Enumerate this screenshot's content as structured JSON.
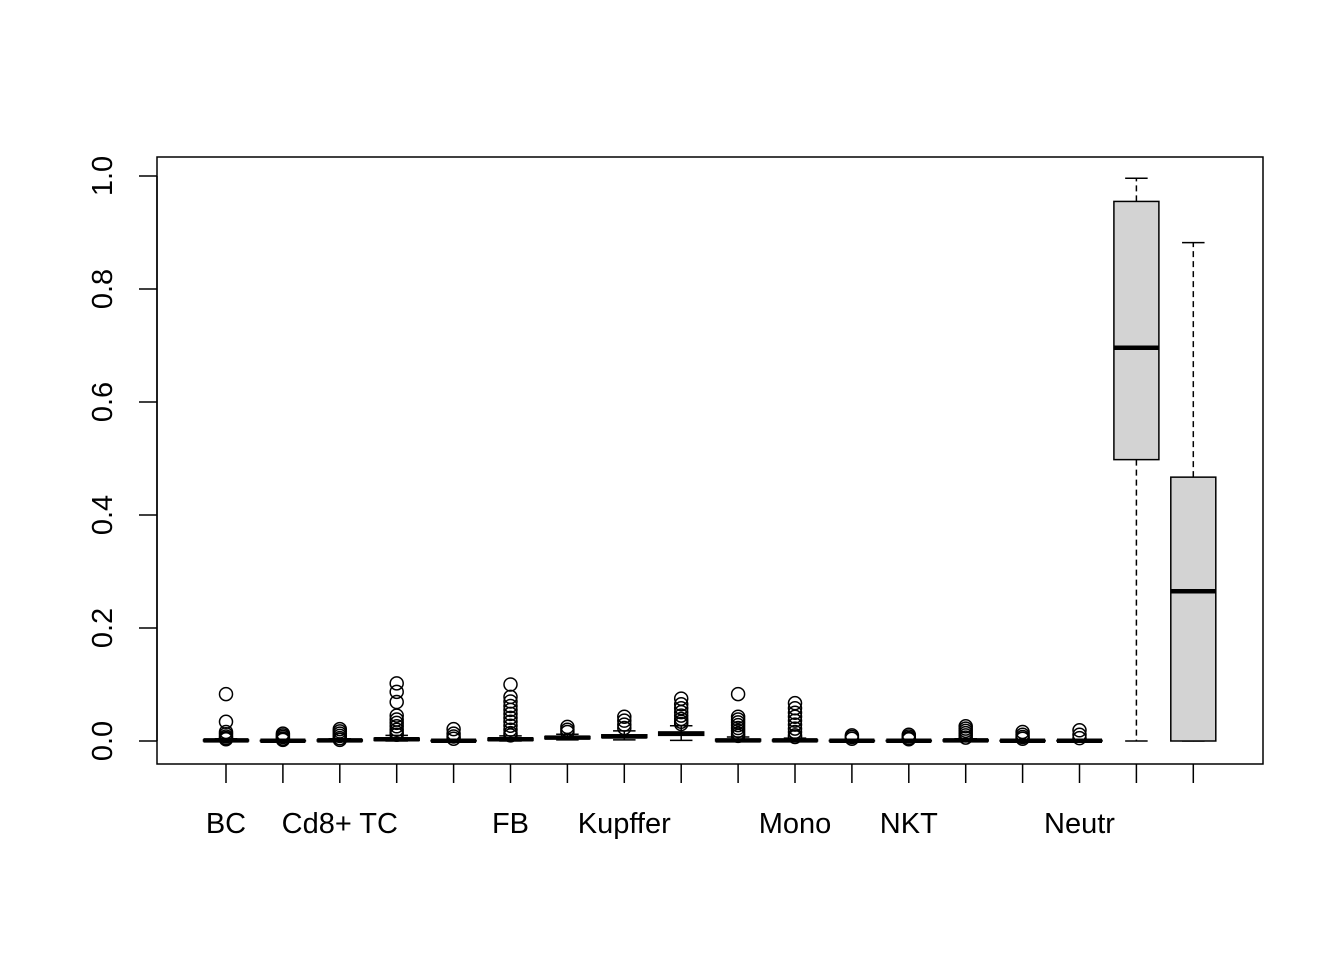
{
  "chart_data": {
    "type": "boxplot",
    "title": "",
    "xlabel": "",
    "ylabel": "",
    "ylim": [
      -0.04,
      1.035
    ],
    "y_ticks": [
      0.0,
      0.2,
      0.4,
      0.6,
      0.8,
      1.0
    ],
    "y_tick_labels": [
      "0.0",
      "0.2",
      "0.4",
      "0.6",
      "0.8",
      "1.0"
    ],
    "x_tick_count": 18,
    "x_labels_shown": [
      {
        "index": 1,
        "label": "BC"
      },
      {
        "index": 3,
        "label": "Cd8+ TC"
      },
      {
        "index": 6,
        "label": "FB"
      },
      {
        "index": 8,
        "label": "Kupffer"
      },
      {
        "index": 11,
        "label": "Mono"
      },
      {
        "index": 13,
        "label": "NKT"
      },
      {
        "index": 16,
        "label": "Neutr"
      }
    ],
    "box_fill": "#d3d3d3",
    "boxes": [
      {
        "q1": 0.0,
        "median": 0.001,
        "q3": 0.002,
        "whisker_low": 0.0,
        "whisker_high": 0.004,
        "outliers": [
          0.083,
          0.034,
          0.016,
          0.012,
          0.008,
          0.005,
          0.003
        ]
      },
      {
        "q1": 0.0,
        "median": 0.0005,
        "q3": 0.001,
        "whisker_low": 0.0,
        "whisker_high": 0.002,
        "outliers": [
          0.013,
          0.01,
          0.007,
          0.004,
          0.002
        ]
      },
      {
        "q1": 0.0,
        "median": 0.001,
        "q3": 0.002,
        "whisker_low": 0.0,
        "whisker_high": 0.004,
        "outliers": [
          0.021,
          0.017,
          0.013,
          0.009,
          0.005,
          0.002
        ]
      },
      {
        "q1": 0.001,
        "median": 0.003,
        "q3": 0.005,
        "whisker_low": 0.0,
        "whisker_high": 0.01,
        "outliers": [
          0.102,
          0.087,
          0.069,
          0.045,
          0.038,
          0.032,
          0.026,
          0.02,
          0.015,
          0.011
        ]
      },
      {
        "q1": 0.0,
        "median": 0.0005,
        "q3": 0.001,
        "whisker_low": 0.0,
        "whisker_high": 0.003,
        "outliers": [
          0.021,
          0.013,
          0.008,
          0.004
        ]
      },
      {
        "q1": 0.001,
        "median": 0.003,
        "q3": 0.005,
        "whisker_low": 0.0,
        "whisker_high": 0.009,
        "outliers": [
          0.1,
          0.078,
          0.07,
          0.062,
          0.055,
          0.048,
          0.041,
          0.034,
          0.027,
          0.02,
          0.014,
          0.01
        ]
      },
      {
        "q1": 0.004,
        "median": 0.006,
        "q3": 0.008,
        "whisker_low": 0.002,
        "whisker_high": 0.012,
        "outliers": [
          0.025,
          0.02,
          0.016
        ]
      },
      {
        "q1": 0.006,
        "median": 0.008,
        "q3": 0.011,
        "whisker_low": 0.002,
        "whisker_high": 0.018,
        "outliers": [
          0.043,
          0.036,
          0.029,
          0.023
        ]
      },
      {
        "q1": 0.01,
        "median": 0.013,
        "q3": 0.016,
        "whisker_low": 0.001,
        "whisker_high": 0.027,
        "outliers": [
          0.075,
          0.065,
          0.058,
          0.051,
          0.045,
          0.039,
          0.034,
          0.03
        ]
      },
      {
        "q1": 0.0,
        "median": 0.001,
        "q3": 0.003,
        "whisker_low": 0.0,
        "whisker_high": 0.007,
        "outliers": [
          0.083,
          0.043,
          0.038,
          0.033,
          0.028,
          0.023,
          0.018,
          0.013,
          0.009
        ]
      },
      {
        "q1": 0.0,
        "median": 0.001,
        "q3": 0.002,
        "whisker_low": 0.0,
        "whisker_high": 0.005,
        "outliers": [
          0.067,
          0.058,
          0.05,
          0.043,
          0.036,
          0.029,
          0.022,
          0.016,
          0.01,
          0.007
        ]
      },
      {
        "q1": 0.0,
        "median": 0.0005,
        "q3": 0.001,
        "whisker_low": 0.0,
        "whisker_high": 0.002,
        "outliers": [
          0.01,
          0.007,
          0.004
        ]
      },
      {
        "q1": 0.0,
        "median": 0.0005,
        "q3": 0.001,
        "whisker_low": 0.0,
        "whisker_high": 0.002,
        "outliers": [
          0.011,
          0.008,
          0.005,
          0.003
        ]
      },
      {
        "q1": 0.0,
        "median": 0.001,
        "q3": 0.002,
        "whisker_low": 0.0,
        "whisker_high": 0.004,
        "outliers": [
          0.026,
          0.022,
          0.018,
          0.014,
          0.01,
          0.006
        ]
      },
      {
        "q1": 0.0,
        "median": 0.0005,
        "q3": 0.001,
        "whisker_low": 0.0,
        "whisker_high": 0.002,
        "outliers": [
          0.016,
          0.011,
          0.007,
          0.004
        ]
      },
      {
        "q1": 0.0,
        "median": 0.0005,
        "q3": 0.001,
        "whisker_low": 0.0,
        "whisker_high": 0.002,
        "outliers": [
          0.019,
          0.011,
          0.005
        ]
      },
      {
        "q1": 0.498,
        "median": 0.696,
        "q3": 0.955,
        "whisker_low": 0.0,
        "whisker_high": 0.996,
        "outliers": []
      },
      {
        "q1": 0.0,
        "median": 0.265,
        "q3": 0.467,
        "whisker_low": 0.0,
        "whisker_high": 0.882,
        "outliers": []
      }
    ]
  }
}
